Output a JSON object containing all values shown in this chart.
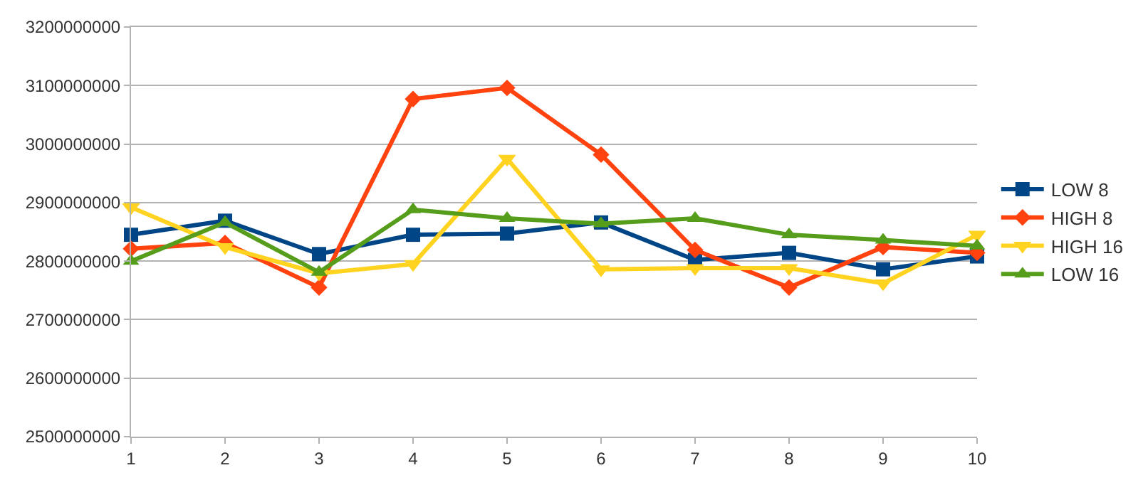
{
  "chart_data": {
    "type": "line",
    "x": [
      1,
      2,
      3,
      4,
      5,
      6,
      7,
      8,
      9,
      10
    ],
    "xlim": [
      1,
      10
    ],
    "xticks": [
      1,
      2,
      3,
      4,
      5,
      6,
      7,
      8,
      9,
      10
    ],
    "ylim": [
      2500000000,
      3200000000
    ],
    "yticks": [
      2500000000,
      2600000000,
      2700000000,
      2800000000,
      2900000000,
      3000000000,
      3100000000,
      3200000000
    ],
    "grid": "y",
    "legend": "right",
    "line_style": "solid",
    "series": [
      {
        "name": "LOW 8",
        "color": "#004586",
        "marker": "square",
        "values": [
          2845000000,
          2869000000,
          2812000000,
          2845000000,
          2847000000,
          2866000000,
          2802000000,
          2814000000,
          2786000000,
          2808000000
        ]
      },
      {
        "name": "HIGH 8",
        "color": "#ff420e",
        "marker": "diamond",
        "values": [
          2821000000,
          2831000000,
          2755000000,
          3077000000,
          3096000000,
          2982000000,
          2819000000,
          2755000000,
          2824000000,
          2814000000
        ]
      },
      {
        "name": "HIGH 16",
        "color": "#ffd320",
        "marker": "triangle-down",
        "values": [
          2892000000,
          2824000000,
          2779000000,
          2795000000,
          2975000000,
          2786000000,
          2788000000,
          2788000000,
          2762000000,
          2845000000
        ]
      },
      {
        "name": "LOW 16",
        "color": "#579d1c",
        "marker": "triangle",
        "values": [
          2800000000,
          2866000000,
          2781000000,
          2888000000,
          2873000000,
          2864000000,
          2873000000,
          2845000000,
          2836000000,
          2826000000
        ]
      }
    ]
  }
}
